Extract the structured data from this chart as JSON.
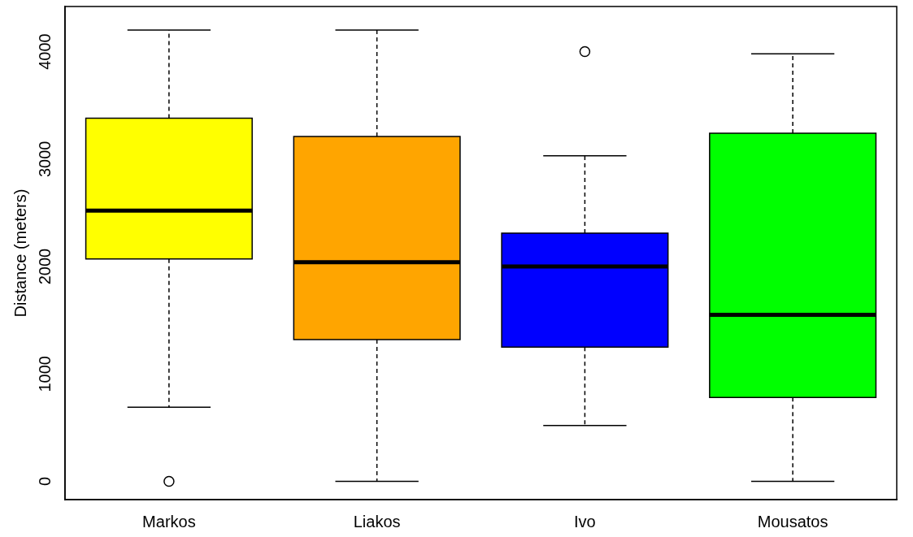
{
  "chart_data": {
    "type": "box",
    "ylabel": "Distance (meters)",
    "categories": [
      "Markos",
      "Liakos",
      "Ivo",
      "Mousatos"
    ],
    "colors": [
      "#ffff00",
      "#ffa500",
      "#0000ff",
      "#00ff00"
    ],
    "boxes": [
      {
        "low": 690,
        "q1": 2070,
        "median": 2520,
        "q3": 3380,
        "high": 4200,
        "outliers": [
          0
        ]
      },
      {
        "low": 0,
        "q1": 1320,
        "median": 2040,
        "q3": 3210,
        "high": 4200
      },
      {
        "low": 520,
        "q1": 1250,
        "median": 2000,
        "q3": 2310,
        "high": 3030,
        "outliers": [
          4000
        ]
      },
      {
        "low": 0,
        "q1": 780,
        "median": 1550,
        "q3": 3240,
        "high": 3980
      }
    ],
    "ylim": [
      -170,
      4420
    ],
    "yticks": [
      0,
      1000,
      2000,
      3000,
      4000
    ],
    "grid": false,
    "legend": false
  }
}
